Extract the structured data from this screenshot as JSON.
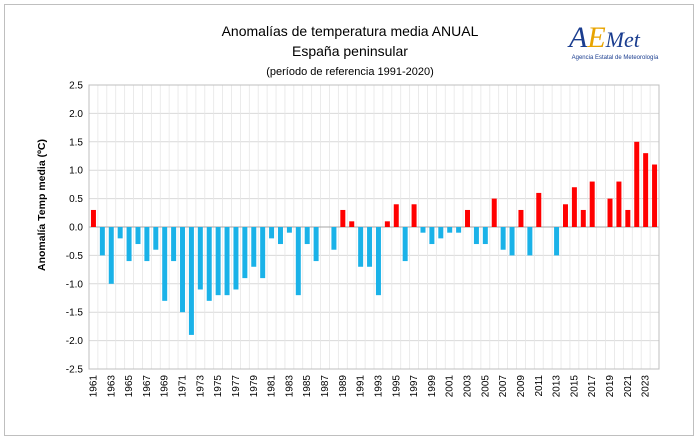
{
  "chart_data": {
    "type": "bar",
    "title": "Anomalías de temperatura media ANUAL",
    "subtitle": "España peninsular",
    "reference": "(período de referencia 1991-2020)",
    "ylabel": "Anomalía Temp media (ºC)",
    "ylim": [
      -2.5,
      2.5
    ],
    "yticks": [
      "2.5",
      "2.0",
      "1.5",
      "1.0",
      "0.5",
      "0.0",
      "-0.5",
      "-1.0",
      "-1.5",
      "-2.0",
      "-2.5"
    ],
    "grid": true,
    "colors": {
      "positive": "#ff0000",
      "negative": "#1ab2e8"
    },
    "x": [
      1961,
      1962,
      1963,
      1964,
      1965,
      1966,
      1967,
      1968,
      1969,
      1970,
      1971,
      1972,
      1973,
      1974,
      1975,
      1976,
      1977,
      1978,
      1979,
      1980,
      1981,
      1982,
      1983,
      1984,
      1985,
      1986,
      1987,
      1988,
      1989,
      1990,
      1991,
      1992,
      1993,
      1994,
      1995,
      1996,
      1997,
      1998,
      1999,
      2000,
      2001,
      2002,
      2003,
      2004,
      2005,
      2006,
      2007,
      2008,
      2009,
      2010,
      2011,
      2012,
      2013,
      2014,
      2015,
      2016,
      2017,
      2018,
      2019,
      2020,
      2021,
      2022,
      2023,
      2024
    ],
    "values": [
      0.3,
      -0.5,
      -1.0,
      -0.2,
      -0.6,
      -0.3,
      -0.6,
      -0.4,
      -1.3,
      -0.6,
      -1.5,
      -1.9,
      -1.1,
      -1.3,
      -1.2,
      -1.2,
      -1.1,
      -0.9,
      -0.7,
      -0.9,
      -0.2,
      -0.3,
      -0.1,
      -1.2,
      -0.3,
      -0.6,
      0.0,
      -0.4,
      0.3,
      0.1,
      -0.7,
      -0.7,
      -1.2,
      0.1,
      0.4,
      -0.6,
      0.4,
      -0.1,
      -0.3,
      -0.2,
      -0.1,
      -0.1,
      0.3,
      -0.3,
      -0.3,
      0.5,
      -0.4,
      -0.5,
      0.3,
      -0.5,
      0.6,
      0.0,
      -0.5,
      0.4,
      0.7,
      0.3,
      0.8,
      0.0,
      0.5,
      0.8,
      0.3,
      1.5,
      1.3,
      1.1
    ],
    "xtick_labels": [
      "1961",
      "1963",
      "1965",
      "1967",
      "1969",
      "1971",
      "1973",
      "1975",
      "1977",
      "1979",
      "1981",
      "1983",
      "1985",
      "1987",
      "1989",
      "1991",
      "1993",
      "1995",
      "1997",
      "1999",
      "2001",
      "2003",
      "2005",
      "2007",
      "2009",
      "2011",
      "2013",
      "2015",
      "2017",
      "2019",
      "2021",
      "2023"
    ]
  },
  "logo": {
    "brand": "AEMet",
    "tagline": "Agencia Estatal de Meteorología",
    "color_primary": "#1a3d8f",
    "color_accent": "#e8a400"
  }
}
